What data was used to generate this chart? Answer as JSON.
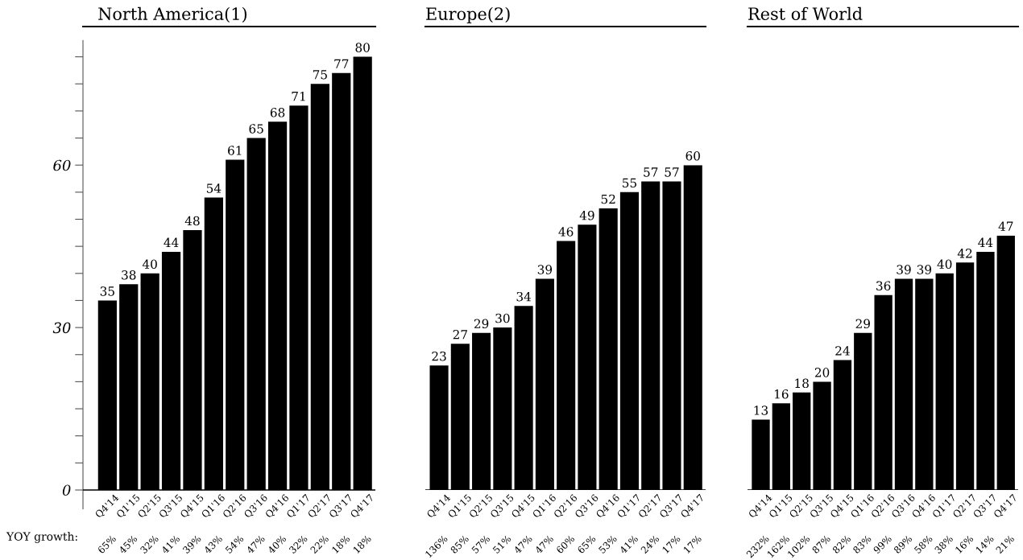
{
  "chart_data": [
    {
      "type": "bar",
      "title": "North America(1)",
      "categories": [
        "Q4'14",
        "Q1'15",
        "Q2'15",
        "Q3'15",
        "Q4'15",
        "Q1'16",
        "Q2'16",
        "Q3'16",
        "Q4'16",
        "Q1'17",
        "Q2'17",
        "Q3'17",
        "Q4'17"
      ],
      "values": [
        35,
        38,
        40,
        44,
        48,
        54,
        61,
        65,
        68,
        71,
        75,
        77,
        80
      ],
      "color": "#000000",
      "data_labels": true,
      "grid": false,
      "ylim": [
        -3.5,
        83
      ],
      "yticks": [
        0,
        {
          "value": 5,
          "label": null
        },
        {
          "value": 10,
          "label": null
        },
        {
          "value": 15,
          "label": null
        },
        {
          "value": 20,
          "label": null
        },
        {
          "value": 25,
          "label": null
        },
        30,
        {
          "value": 35,
          "label": null
        },
        {
          "value": 40,
          "label": null
        },
        {
          "value": 45,
          "label": null
        },
        {
          "value": 50,
          "label": null
        },
        {
          "value": 55,
          "label": null
        },
        60,
        {
          "value": 65,
          "label": null
        },
        {
          "value": 70,
          "label": null
        },
        {
          "value": 75,
          "label": null
        },
        {
          "value": 80,
          "label": null
        }
      ],
      "annotations": [
        "YOY growth:",
        "65%",
        "45%",
        "32%",
        "41%",
        "39%",
        "43%",
        "54%",
        "47%",
        "40%",
        "32%",
        "22%",
        "18%",
        "18%"
      ]
    },
    {
      "type": "bar",
      "title": "Europe(2)",
      "categories": [
        "Q4'14",
        "Q1'15",
        "Q2'15",
        "Q3'15",
        "Q4'15",
        "Q1'16",
        "Q2'16",
        "Q3'16",
        "Q4'16",
        "Q1'17",
        "Q2'17",
        "Q3'17",
        "Q4'17"
      ],
      "values": [
        23,
        27,
        29,
        30,
        34,
        39,
        46,
        49,
        52,
        55,
        57,
        57,
        60
      ],
      "color": "#000000",
      "data_labels": true,
      "grid": false,
      "ylim": [
        0,
        60
      ],
      "tick_labels": "x",
      "annotations": [
        "136%",
        "85%",
        "57%",
        "51%",
        "47%",
        "47%",
        "60%",
        "65%",
        "53%",
        "41%",
        "24%",
        "17%",
        "17%"
      ]
    },
    {
      "type": "bar",
      "title": "Rest of World",
      "categories": [
        "Q4'14",
        "Q1'15",
        "Q2'15",
        "Q3'15",
        "Q4'15",
        "Q1'16",
        "Q2'16",
        "Q3'16",
        "Q4'16",
        "Q1'17",
        "Q2'17",
        "Q3'17",
        "Q4'17"
      ],
      "values": [
        13,
        16,
        18,
        20,
        24,
        29,
        36,
        39,
        39,
        40,
        42,
        44,
        47
      ],
      "color": "#000000",
      "data_labels": true,
      "grid": false,
      "tick_labels": "x",
      "annotations": [
        "232%",
        "162%",
        "102%",
        "87%",
        "82%",
        "83%",
        "99%",
        "89%",
        "58%",
        "38%",
        "16%",
        "14%",
        "21%"
      ]
    }
  ]
}
